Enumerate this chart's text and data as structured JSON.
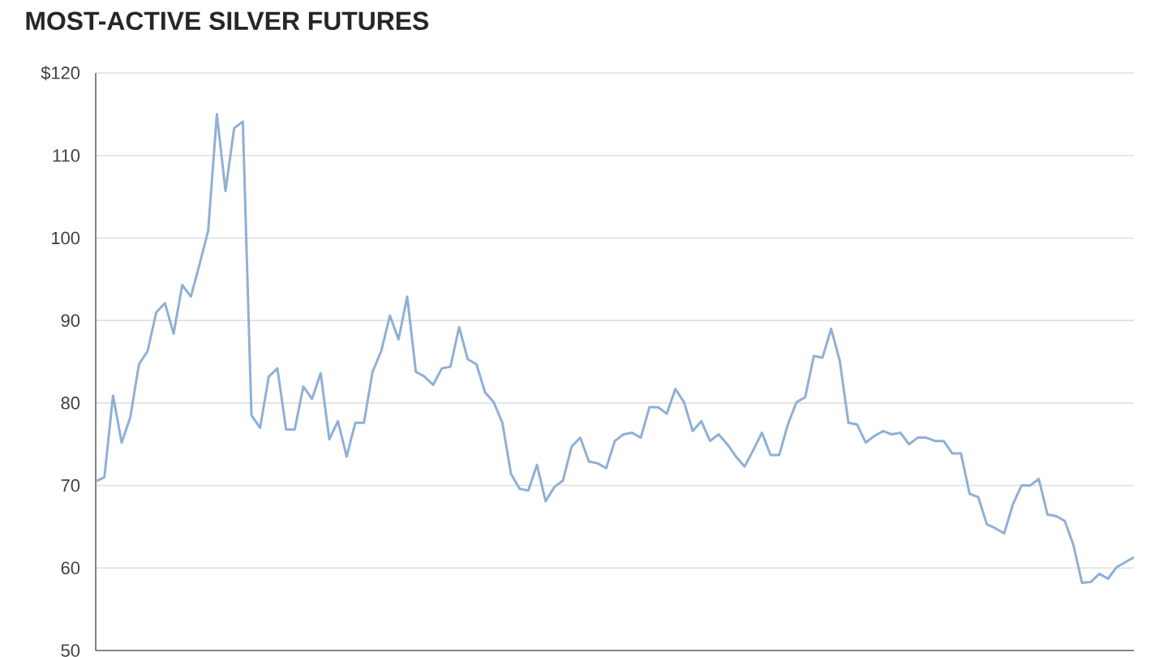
{
  "chart_data": {
    "type": "line",
    "title": "MOST-ACTIVE SILVER FUTURES",
    "categories": [
      null,
      null,
      null,
      null,
      null,
      null,
      null,
      null,
      null,
      null,
      null,
      null,
      null,
      null,
      null,
      null,
      null,
      null,
      null,
      null,
      null,
      null,
      null,
      null,
      null,
      null,
      null,
      null,
      null,
      null,
      null,
      null,
      null,
      null,
      null,
      null,
      null,
      null,
      null,
      null,
      null,
      null,
      null,
      null,
      null,
      null,
      null,
      null,
      null,
      null,
      null,
      null,
      null,
      null,
      null,
      null,
      null,
      null,
      null,
      null,
      null,
      null,
      null,
      null,
      null,
      null,
      null,
      null,
      null,
      null,
      null,
      null,
      null,
      null,
      null,
      null,
      null,
      null,
      null,
      null,
      null,
      null,
      null,
      null,
      null,
      null,
      null,
      null,
      null,
      null,
      null,
      null,
      null,
      null,
      null,
      null,
      null,
      null,
      null,
      null,
      null,
      null,
      null,
      null,
      null,
      null,
      null,
      null,
      null,
      null,
      null,
      null,
      null,
      null,
      null,
      null,
      null,
      null,
      null,
      null,
      null
    ],
    "series": [
      {
        "color": "#8fb0d6",
        "values": [
          70.5,
          71,
          80.9,
          75.2,
          78.3,
          84.7,
          86.3,
          91,
          92.1,
          88.4,
          94.3,
          92.9,
          96.8,
          100.9,
          115,
          105.7,
          113.3,
          114.1,
          78.5,
          77,
          83.2,
          84.2,
          76.8,
          76.8,
          82,
          80.5,
          83.6,
          75.6,
          77.8,
          73.5,
          77.6,
          77.6,
          83.8,
          86.3,
          90.6,
          87.7,
          92.9,
          83.8,
          83.2,
          82.2,
          84.2,
          84.4,
          89.2,
          85.3,
          84.7,
          81.3,
          80.1,
          77.6,
          71.4,
          69.6,
          69.4,
          72.5,
          68.1,
          69.8,
          70.6,
          74.7,
          75.8,
          72.9,
          72.7,
          72.1,
          75.4,
          76.2,
          76.4,
          75.8,
          79.5,
          79.5,
          78.7,
          81.7,
          80.1,
          76.6,
          77.8,
          75.4,
          76.2,
          75,
          73.5,
          72.3,
          74.3,
          76.4,
          73.7,
          73.7,
          77.4,
          80.1,
          80.7,
          85.7,
          85.5,
          89,
          85.1,
          77.6,
          77.4,
          75.2,
          76,
          76.6,
          76.2,
          76.4,
          75,
          75.8,
          75.8,
          75.4,
          75.4,
          73.9,
          73.9,
          69,
          68.6,
          65.3,
          64.8,
          64.2,
          67.7,
          70,
          70,
          70.8,
          66.5,
          66.3,
          65.7,
          62.8,
          58.2,
          58.3,
          59.3,
          58.7,
          60.1,
          60.7,
          61.3
        ]
      }
    ],
    "ylim": [
      50,
      120
    ],
    "yticks": [
      50,
      60,
      70,
      80,
      90,
      100,
      110,
      {
        "value": 120,
        "label": "$120"
      }
    ],
    "grid": "y",
    "tick_labels": "y",
    "marker": "none",
    "line_style": "solid"
  }
}
